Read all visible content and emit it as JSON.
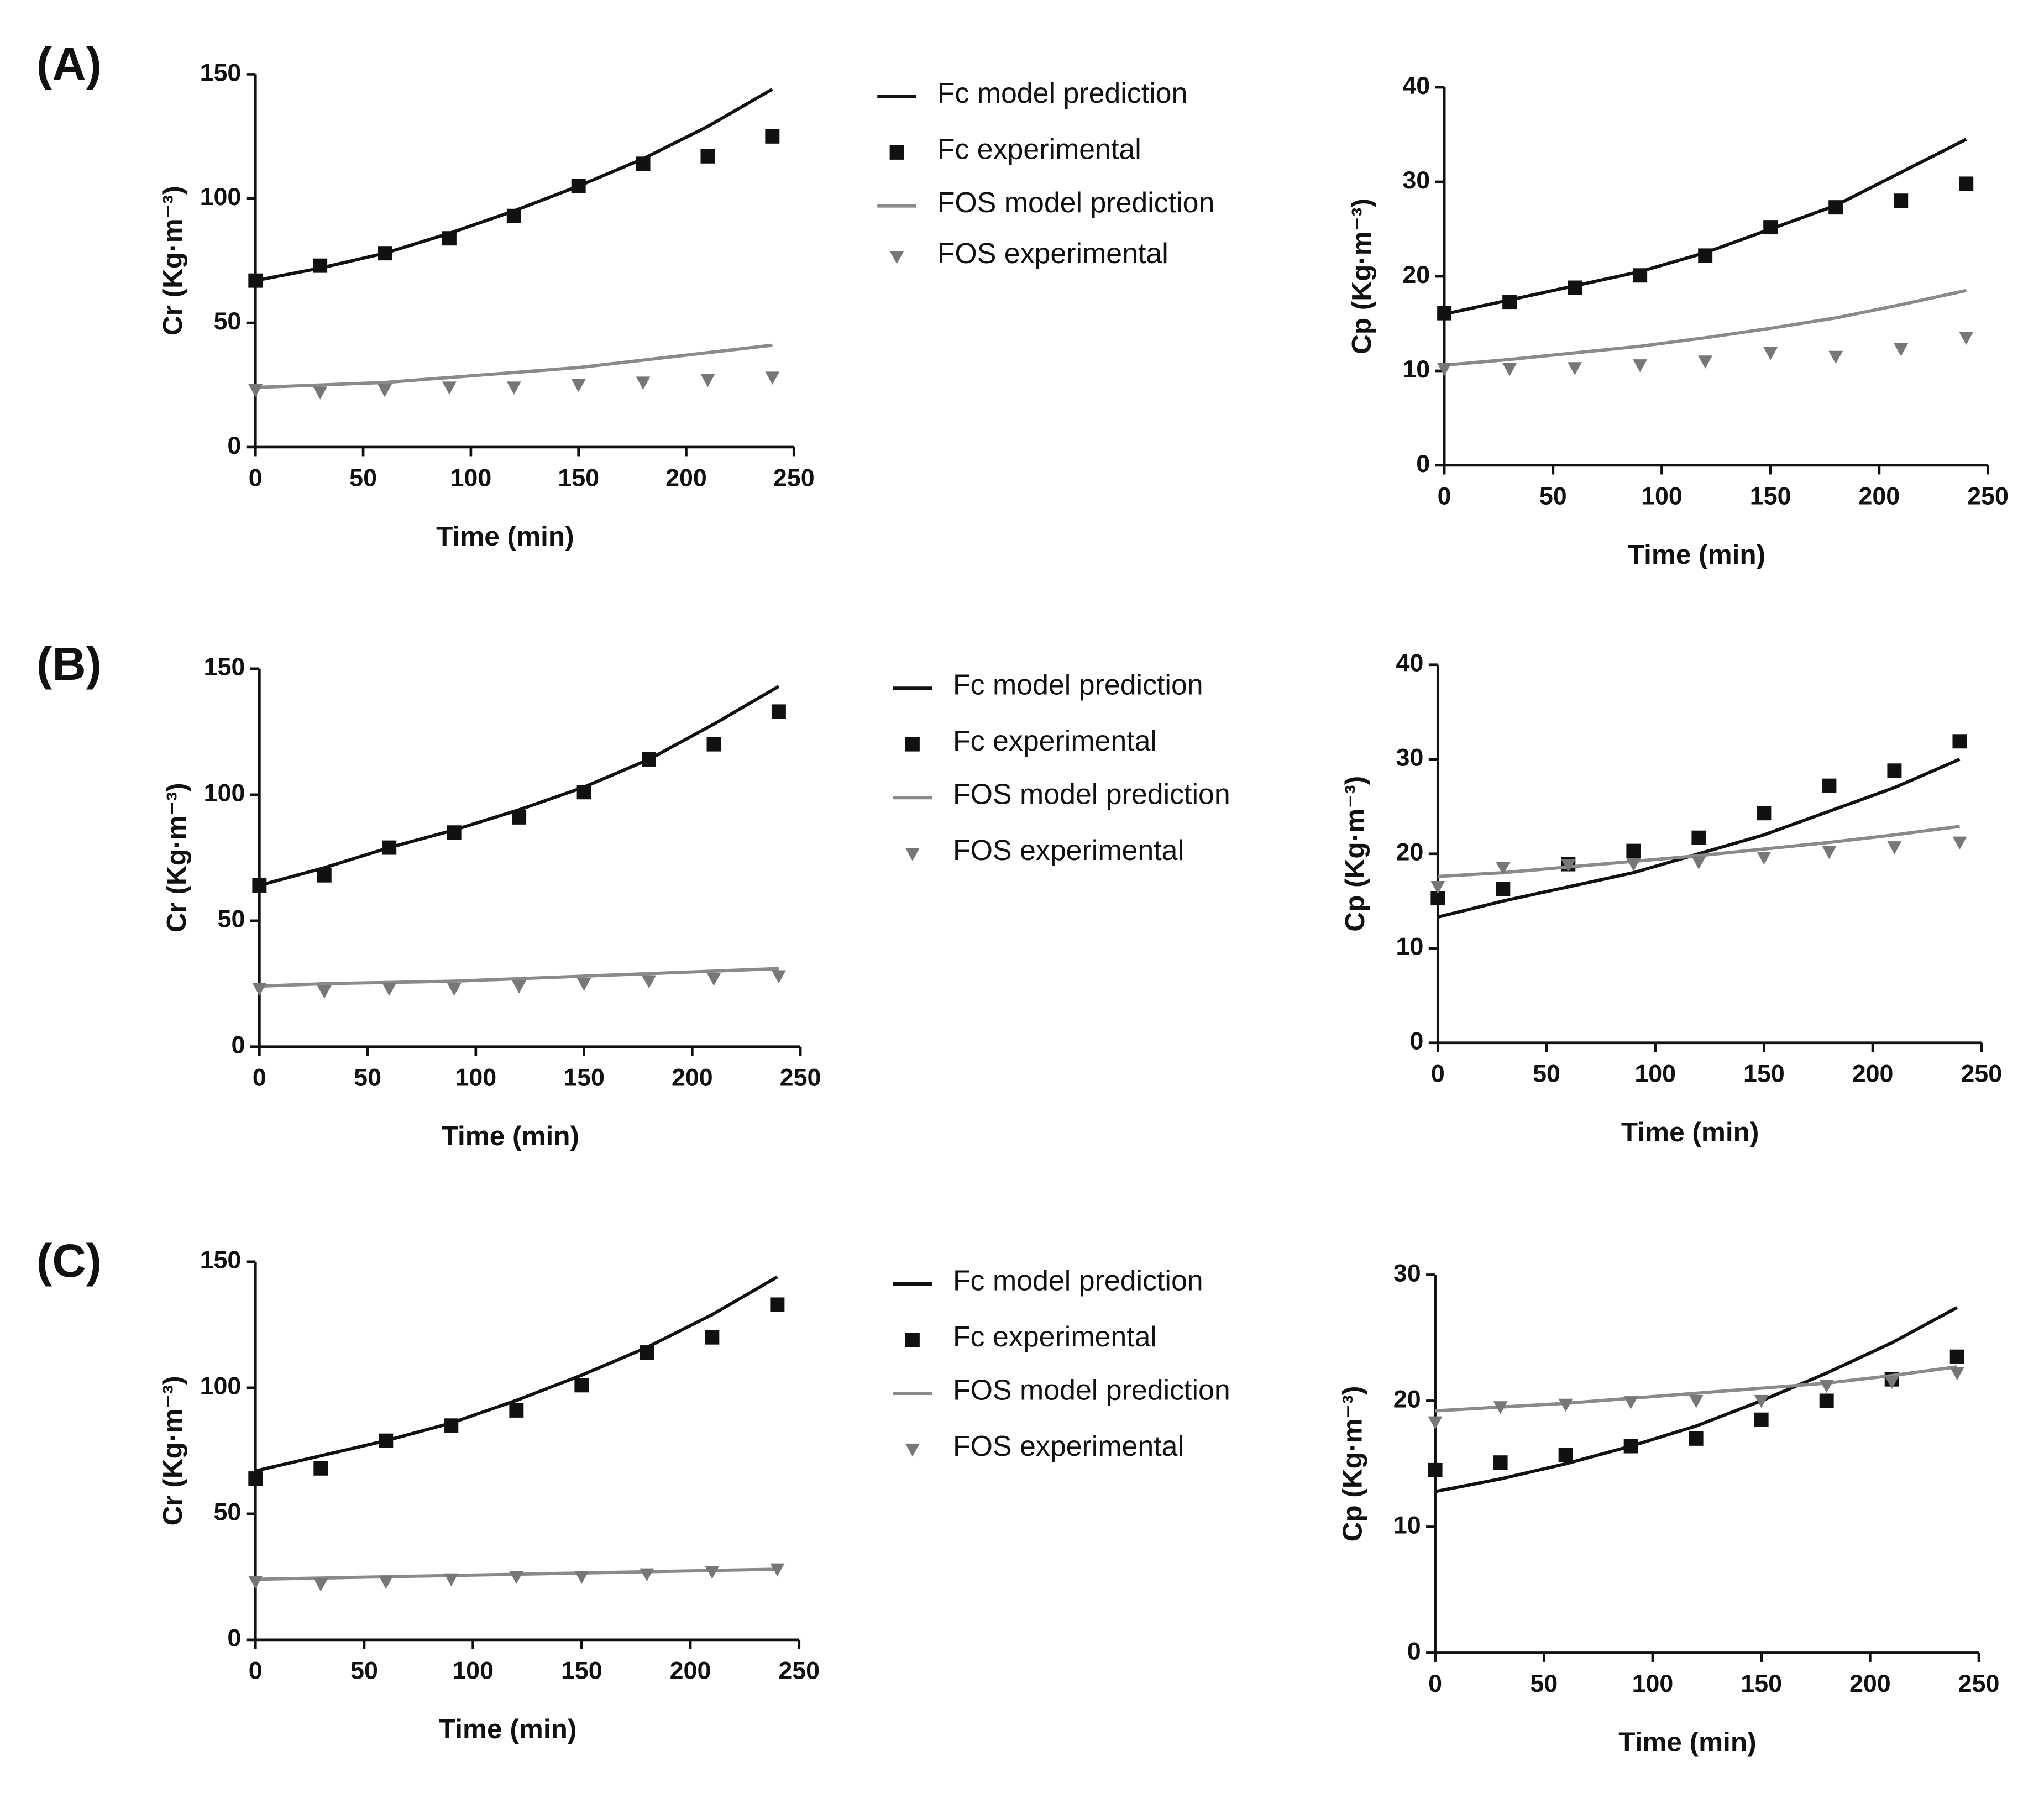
{
  "chart_data": [
    {
      "type": "line",
      "panel": "(A)",
      "xlabel": "Time (min)",
      "ylabel": "Cr (Kg·m⁻³)",
      "x": [
        0,
        30,
        60,
        90,
        120,
        150,
        180,
        210,
        240
      ],
      "xlim": [
        0,
        250
      ],
      "xticks": [
        0,
        50,
        100,
        150,
        200,
        250
      ],
      "ylim": [
        0,
        150
      ],
      "yticks": [
        0,
        50,
        100,
        150
      ],
      "series": [
        {
          "name": "Fc model prediction",
          "color": "#111111",
          "marker": "line",
          "values": [
            67,
            72,
            78,
            86,
            95,
            105,
            116,
            129,
            144
          ]
        },
        {
          "name": "Fc experimental",
          "color": "#111111",
          "marker": "square",
          "values": [
            67,
            73,
            78,
            84,
            93,
            105,
            114,
            117,
            125
          ]
        },
        {
          "name": "FOS model prediction",
          "color": "#8a8a8a",
          "marker": "line",
          "values": [
            24,
            25,
            26,
            28,
            30,
            32,
            35,
            38,
            41
          ]
        },
        {
          "name": "FOS experimental",
          "color": "#777777",
          "marker": "triangle",
          "values": [
            23,
            22,
            23,
            24,
            24,
            25,
            26,
            27,
            28
          ]
        }
      ]
    },
    {
      "type": "line",
      "xlabel": "Time (min)",
      "ylabel": "Cp (Kg·m⁻³)",
      "x": [
        0,
        30,
        60,
        90,
        120,
        150,
        180,
        210,
        240
      ],
      "xlim": [
        0,
        250
      ],
      "xticks": [
        0,
        50,
        100,
        150,
        200,
        250
      ],
      "ylim": [
        0,
        40
      ],
      "yticks": [
        0,
        10,
        20,
        30,
        40
      ],
      "series": [
        {
          "color": "#111111",
          "marker": "line",
          "values": [
            16,
            17.5,
            19,
            20.5,
            22.5,
            25,
            27.5,
            31,
            34.5
          ]
        },
        {
          "color": "#111111",
          "marker": "square",
          "values": [
            16.1,
            17.3,
            18.8,
            20.1,
            22.2,
            25.2,
            27.3,
            28,
            29.8
          ]
        },
        {
          "color": "#8a8a8a",
          "marker": "line",
          "values": [
            10.6,
            11.2,
            11.9,
            12.6,
            13.5,
            14.5,
            15.6,
            17,
            18.5
          ]
        },
        {
          "color": "#777777",
          "marker": "triangle",
          "values": [
            10.2,
            10.2,
            10.3,
            10.6,
            11,
            11.9,
            11.5,
            12.3,
            13.5
          ]
        }
      ]
    },
    {
      "type": "line",
      "panel": "(B)",
      "xlabel": "Time (min)",
      "ylabel": "Cr (Kg·m⁻³)",
      "x": [
        0,
        30,
        60,
        90,
        120,
        150,
        180,
        210,
        240
      ],
      "xlim": [
        0,
        250
      ],
      "xticks": [
        0,
        50,
        100,
        150,
        200,
        250
      ],
      "ylim": [
        0,
        150
      ],
      "yticks": [
        0,
        50,
        100,
        150
      ],
      "series": [
        {
          "name": "Fc model prediction",
          "color": "#111111",
          "marker": "line",
          "values": [
            64,
            71,
            79,
            86,
            94,
            103,
            114,
            128,
            143
          ]
        },
        {
          "name": "Fc experimental",
          "color": "#111111",
          "marker": "square",
          "values": [
            64,
            68,
            79,
            85,
            91,
            101,
            114,
            120,
            133
          ]
        },
        {
          "name": "FOS model prediction",
          "color": "#8a8a8a",
          "marker": "line",
          "values": [
            24,
            25,
            25.5,
            26,
            27,
            28,
            29,
            30,
            31
          ]
        },
        {
          "name": "FOS experimental",
          "color": "#777777",
          "marker": "triangle",
          "values": [
            23,
            22,
            23,
            23,
            24,
            25,
            26,
            27,
            28
          ]
        }
      ]
    },
    {
      "type": "line",
      "xlabel": "Time (min)",
      "ylabel": "Cp (Kg·m⁻³)",
      "x": [
        0,
        30,
        60,
        90,
        120,
        150,
        180,
        210,
        240
      ],
      "xlim": [
        0,
        250
      ],
      "xticks": [
        0,
        50,
        100,
        150,
        200,
        250
      ],
      "ylim": [
        0,
        40
      ],
      "yticks": [
        0,
        10,
        20,
        30,
        40
      ],
      "series": [
        {
          "color": "#111111",
          "marker": "line",
          "values": [
            13.3,
            15,
            16.5,
            18,
            20,
            22,
            24.5,
            27,
            30
          ]
        },
        {
          "color": "#111111",
          "marker": "square",
          "values": [
            15.3,
            16.3,
            18.9,
            20.3,
            21.7,
            24.3,
            27.2,
            28.8,
            31.9
          ]
        },
        {
          "color": "#8a8a8a",
          "marker": "line",
          "values": [
            17.6,
            18,
            18.6,
            19.2,
            19.8,
            20.5,
            21.2,
            22,
            22.9
          ]
        },
        {
          "color": "#777777",
          "marker": "triangle",
          "values": [
            16.5,
            18.5,
            18.8,
            18.9,
            19.1,
            19.6,
            20.2,
            20.7,
            21.2
          ]
        }
      ]
    },
    {
      "type": "line",
      "panel": "(C)",
      "xlabel": "Time (min)",
      "ylabel": "Cr (Kg·m⁻³)",
      "x": [
        0,
        30,
        60,
        90,
        120,
        150,
        180,
        210,
        240
      ],
      "xlim": [
        0,
        250
      ],
      "xticks": [
        0,
        50,
        100,
        150,
        200,
        250
      ],
      "ylim": [
        0,
        150
      ],
      "yticks": [
        0,
        50,
        100,
        150
      ],
      "series": [
        {
          "name": "Fc model prediction",
          "color": "#111111",
          "marker": "line",
          "values": [
            67,
            73,
            79,
            86,
            95,
            105,
            116,
            129,
            144
          ]
        },
        {
          "name": "Fc experimental",
          "color": "#111111",
          "marker": "square",
          "values": [
            64,
            68,
            79,
            85,
            91,
            101,
            114,
            120,
            133
          ]
        },
        {
          "name": "FOS model prediction",
          "color": "#8a8a8a",
          "marker": "line",
          "values": [
            24,
            24.5,
            25,
            25.5,
            26,
            26.5,
            27,
            27.5,
            28
          ]
        },
        {
          "name": "FOS experimental",
          "color": "#777777",
          "marker": "triangle",
          "values": [
            23,
            22,
            23,
            24,
            25,
            25,
            26,
            27,
            28
          ]
        }
      ]
    },
    {
      "type": "line",
      "xlabel": "Time (min)",
      "ylabel": "Cp (Kg·m⁻³)",
      "x": [
        0,
        30,
        60,
        90,
        120,
        150,
        180,
        210,
        240
      ],
      "xlim": [
        0,
        250
      ],
      "xticks": [
        0,
        50,
        100,
        150,
        200,
        250
      ],
      "ylim": [
        0,
        30
      ],
      "yticks": [
        0,
        10,
        20,
        30
      ],
      "series": [
        {
          "color": "#111111",
          "marker": "line",
          "values": [
            12.8,
            13.8,
            15,
            16.4,
            18,
            20,
            22.2,
            24.6,
            27.4
          ]
        },
        {
          "color": "#111111",
          "marker": "square",
          "values": [
            14.5,
            15.1,
            15.7,
            16.4,
            17,
            18.5,
            20,
            21.7,
            23.5
          ]
        },
        {
          "color": "#8a8a8a",
          "marker": "line",
          "values": [
            19.2,
            19.5,
            19.8,
            20.2,
            20.6,
            21,
            21.4,
            22,
            22.7
          ]
        },
        {
          "color": "#777777",
          "marker": "triangle",
          "values": [
            18.3,
            19.5,
            19.7,
            19.9,
            20,
            20,
            21.2,
            21.5,
            22.2
          ]
        }
      ]
    }
  ]
}
